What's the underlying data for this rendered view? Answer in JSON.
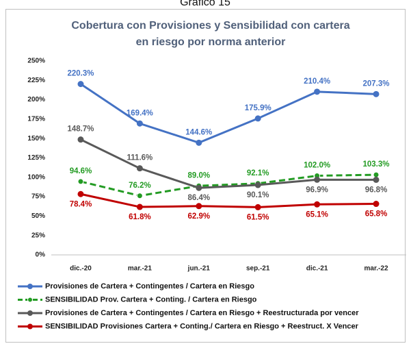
{
  "figure_label": "Gráfico 15",
  "chart_data": {
    "type": "line",
    "title": [
      "Cobertura con Provisiones y Sensibilidad con cartera",
      "en riesgo por norma anterior"
    ],
    "categories": [
      "dic.-20",
      "mar.-21",
      "jun.-21",
      "sep.-21",
      "dic.-21",
      "mar.-22"
    ],
    "ylim": [
      0,
      250
    ],
    "yticks": [
      {
        "value": 0,
        "label": "0%"
      },
      {
        "value": 25,
        "label": "25%"
      },
      {
        "value": 50,
        "label": "50%"
      },
      {
        "value": 75,
        "label": "75%"
      },
      {
        "value": 100,
        "label": "100%"
      },
      {
        "value": 125,
        "label": "125%"
      },
      {
        "value": 150,
        "label": "150%"
      },
      {
        "value": 175,
        "label": "175%"
      },
      {
        "value": 200,
        "label": "200%"
      },
      {
        "value": 225,
        "label": "225%"
      },
      {
        "value": 250,
        "label": "250%"
      }
    ],
    "grid": false,
    "legend": "bottom",
    "series": [
      {
        "name": "Provisiones de Cartera + Contingentes / Cartera en Riesgo",
        "color": "#4472c4",
        "dashed": false,
        "values": [
          220.3,
          169.4,
          144.6,
          175.9,
          210.4,
          207.3
        ],
        "value_labels": [
          "220.3%",
          "169.4%",
          "144.6%",
          "175.9%",
          "210.4%",
          "207.3%"
        ]
      },
      {
        "name": "SENSIBILIDAD Prov. Cartera + Conting. / Cartera en Riesgo",
        "color": "#239b23",
        "dashed": true,
        "values": [
          94.6,
          76.2,
          89.0,
          92.1,
          102.0,
          103.3
        ],
        "value_labels": [
          "94.6%",
          "76.2%",
          "89.0%",
          "92.1%",
          "102.0%",
          "103.3%"
        ]
      },
      {
        "name": "Provisiones de Cartera + Contingentes / Cartera en Riesgo + Reestructurada por vencer",
        "color": "#595959",
        "dashed": false,
        "values": [
          148.7,
          111.6,
          86.4,
          90.1,
          96.9,
          96.8
        ],
        "value_labels": [
          "148.7%",
          "111.6%",
          "86.4%",
          "90.1%",
          "96.9%",
          "96.8%"
        ]
      },
      {
        "name": "SENSIBILIDAD Provisiones Cartera + Conting./ Cartera en Riesgo + Reestruct. X Vencer",
        "color": "#c00000",
        "dashed": false,
        "values": [
          78.4,
          61.8,
          62.9,
          61.5,
          65.1,
          65.8
        ],
        "value_labels": [
          "78.4%",
          "61.8%",
          "62.9%",
          "61.5%",
          "65.1%",
          "65.8%"
        ]
      }
    ]
  }
}
